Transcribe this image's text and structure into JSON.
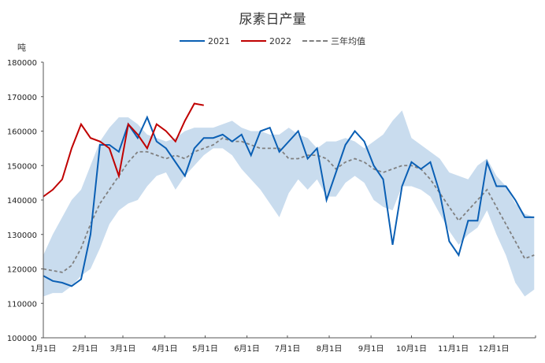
{
  "chart_data": {
    "type": "line",
    "title": "尿素日产量",
    "ylabel": "吨",
    "ylim": [
      100000,
      180000
    ],
    "yticks": [
      100000,
      110000,
      120000,
      130000,
      140000,
      150000,
      160000,
      170000,
      180000
    ],
    "xtick_labels": [
      "1月1日",
      "2月1日",
      "3月1日",
      "4月1日",
      "5月1日",
      "6月1日",
      "7月1日",
      "8月1日",
      "9月1日",
      "10月1日",
      "11月1日",
      "12月1日"
    ],
    "xtick_days": [
      0,
      31,
      59,
      90,
      120,
      151,
      181,
      212,
      243,
      273,
      304,
      334
    ],
    "x_days": [
      0,
      7,
      14,
      21,
      28,
      35,
      42,
      49,
      56,
      63,
      70,
      77,
      84,
      91,
      98,
      105,
      112,
      119,
      126,
      133,
      140,
      147,
      154,
      161,
      168,
      175,
      182,
      189,
      196,
      203,
      210,
      217,
      224,
      231,
      238,
      245,
      252,
      259,
      266,
      273,
      280,
      287,
      294,
      301,
      308,
      315,
      322,
      329,
      336,
      343,
      350,
      357,
      364
    ],
    "legend_position": "top",
    "grid": false,
    "series": [
      {
        "name": "2021",
        "color": "#0a5fb4",
        "style": "solid",
        "values": [
          118000,
          116500,
          116000,
          115000,
          117000,
          130000,
          156000,
          156000,
          154000,
          162000,
          158000,
          164000,
          157000,
          155000,
          151000,
          147000,
          155000,
          158000,
          158000,
          159000,
          157000,
          159000,
          153000,
          160000,
          161000,
          154000,
          157000,
          160000,
          152000,
          155000,
          140000,
          148000,
          156000,
          160000,
          157000,
          150000,
          146000,
          127000,
          144000,
          151000,
          149000,
          151000,
          142000,
          128000,
          124000,
          134000,
          134000,
          151000,
          144000,
          144000,
          140000,
          135000,
          135000
        ]
      },
      {
        "name": "2022",
        "color": "#c00000",
        "style": "solid",
        "values": [
          141000,
          143000,
          146000,
          155000,
          162000,
          158000,
          157000,
          155000,
          147000,
          162000,
          159000,
          155000,
          162000,
          160000,
          157000,
          163000,
          168000,
          167500
        ]
      },
      {
        "name": "三年均值",
        "color": "#808080",
        "style": "dashed",
        "values": [
          120000,
          119500,
          119000,
          121000,
          126000,
          133000,
          139000,
          143000,
          147000,
          151000,
          154000,
          154000,
          153000,
          152000,
          153000,
          152000,
          154000,
          155000,
          156000,
          158000,
          157000,
          157000,
          156000,
          155000,
          155000,
          155000,
          152000,
          152000,
          153000,
          153000,
          152000,
          149000,
          151000,
          152000,
          151000,
          149000,
          148000,
          149000,
          150000,
          150000,
          149000,
          146000,
          142000,
          138000,
          134000,
          137000,
          140000,
          143000,
          138000,
          133000,
          128000,
          123000,
          124000
        ]
      }
    ],
    "band": {
      "color": "#c9dcee",
      "low": [
        112000,
        113000,
        113000,
        115000,
        118000,
        120000,
        126000,
        133000,
        137000,
        139000,
        140000,
        144000,
        147000,
        148000,
        143000,
        147000,
        150000,
        153000,
        155000,
        155000,
        153000,
        149000,
        146000,
        143000,
        139000,
        135000,
        142000,
        146000,
        143000,
        146000,
        141000,
        141000,
        145000,
        147000,
        145000,
        140000,
        138000,
        137000,
        144000,
        144000,
        143000,
        141000,
        136000,
        131000,
        127000,
        130000,
        132000,
        137000,
        130000,
        124000,
        116000,
        112000,
        114000
      ],
      "high": [
        124000,
        130000,
        135000,
        140000,
        143000,
        150000,
        157000,
        161000,
        164000,
        164000,
        162000,
        159000,
        158000,
        157000,
        158000,
        160000,
        161000,
        161000,
        161000,
        162000,
        163000,
        161000,
        160000,
        160000,
        159000,
        159000,
        161000,
        159000,
        158000,
        155000,
        157000,
        157000,
        158000,
        157000,
        155000,
        157000,
        159000,
        163000,
        166000,
        158000,
        156000,
        154000,
        152000,
        148000,
        147000,
        146000,
        150000,
        152000,
        147000,
        144000,
        139000,
        136000,
        135000
      ]
    }
  }
}
